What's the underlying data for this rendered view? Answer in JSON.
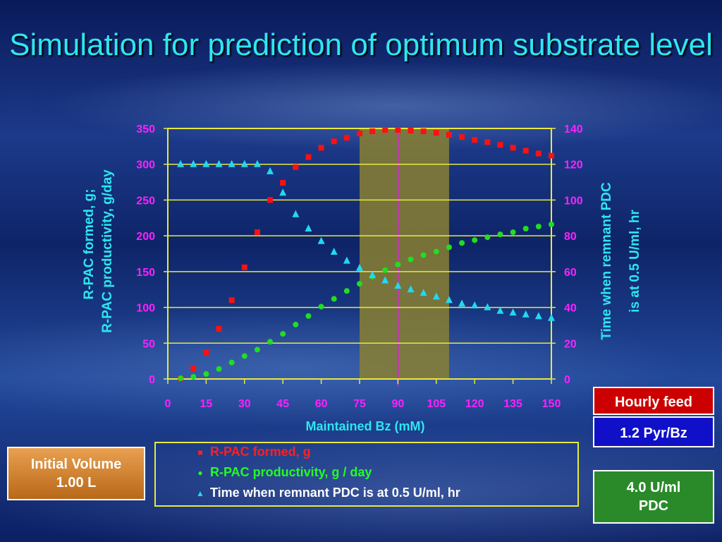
{
  "title": "Simulation for prediction of optimum substrate level",
  "chart_data": {
    "type": "scatter",
    "xlabel": "Maintained Bz (mM)",
    "ylabel_left": [
      "R-PAC formed, g;",
      "R-PAC productivity, g/day"
    ],
    "ylabel_right": [
      "Time when remnant PDC",
      "is at 0.5 U/ml, hr"
    ],
    "xlim": [
      0,
      150
    ],
    "x_ticks": [
      "0",
      "15",
      "30",
      "45",
      "60",
      "75",
      "90",
      "105",
      "120",
      "135",
      "150"
    ],
    "ylim_left": [
      0,
      350
    ],
    "y_left_ticks": [
      "0",
      "50",
      "100",
      "150",
      "200",
      "250",
      "300",
      "350"
    ],
    "ylim_right": [
      0,
      140
    ],
    "y_right_ticks": [
      "0",
      "20",
      "40",
      "60",
      "80",
      "100",
      "120",
      "140"
    ],
    "grid": true,
    "optimum_band": [
      75,
      110
    ],
    "optimum_line": 90,
    "series": [
      {
        "name": "R-PAC formed, g",
        "axis": "left",
        "marker": "square",
        "color": "#ff1010",
        "x": [
          5,
          10,
          15,
          20,
          25,
          30,
          35,
          40,
          45,
          50,
          55,
          60,
          65,
          70,
          75,
          80,
          85,
          90,
          95,
          100,
          105,
          110,
          115,
          120,
          125,
          130,
          135,
          140,
          145,
          150
        ],
        "y": [
          1,
          15,
          37,
          70,
          110,
          156,
          205,
          250,
          274,
          296,
          310,
          323,
          332,
          337,
          343,
          346,
          348,
          348,
          347,
          346,
          344,
          341,
          338,
          334,
          331,
          327,
          323,
          319,
          315,
          312
        ]
      },
      {
        "name": "R-PAC productivity, g / day",
        "axis": "left",
        "marker": "circle",
        "color": "#22dd22",
        "x": [
          5,
          10,
          15,
          20,
          25,
          30,
          35,
          40,
          45,
          50,
          55,
          60,
          65,
          70,
          75,
          80,
          85,
          90,
          95,
          100,
          105,
          110,
          115,
          120,
          125,
          130,
          135,
          140,
          145,
          150
        ],
        "y": [
          1,
          3,
          7,
          14,
          23,
          32,
          41,
          52,
          63,
          76,
          88,
          101,
          112,
          123,
          133,
          143,
          152,
          160,
          167,
          173,
          178,
          184,
          190,
          194,
          198,
          202,
          205,
          210,
          213,
          216
        ]
      },
      {
        "name": "Time when remnant PDC is at 0.5 U/ml, hr",
        "axis": "right",
        "marker": "triangle",
        "color": "#22d8f0",
        "x": [
          5,
          10,
          15,
          20,
          25,
          30,
          35,
          40,
          45,
          50,
          55,
          60,
          65,
          70,
          75,
          80,
          85,
          90,
          95,
          100,
          105,
          110,
          115,
          120,
          125,
          130,
          135,
          140,
          145,
          150
        ],
        "y": [
          120,
          120,
          120,
          120,
          120,
          120,
          120,
          116,
          104,
          92,
          84,
          77,
          71,
          66,
          62,
          58,
          55,
          52,
          50,
          48,
          46,
          44,
          42,
          41,
          40,
          38,
          37,
          36,
          35,
          34
        ]
      }
    ]
  },
  "boxes": {
    "hourly_feed_label": "Hourly feed",
    "hourly_feed_value": "1.2 Pyr/Bz",
    "initial_volume_label": "Initial Volume",
    "initial_volume_value": "1.00 L",
    "pdc_value": "4.0 U/ml",
    "pdc_label": "PDC"
  },
  "legend": {
    "items": [
      "R-PAC formed, g",
      "R-PAC productivity, g / day",
      "Time when remnant PDC is at 0.5 U/ml, hr"
    ],
    "colors": [
      "#ff2020",
      "#22ff22",
      "#ffffff"
    ]
  }
}
